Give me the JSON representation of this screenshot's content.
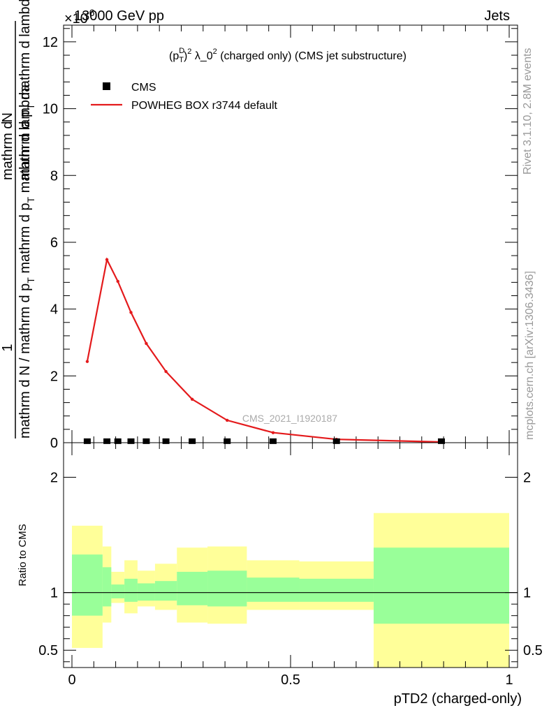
{
  "header": {
    "left": "13000 GeV pp",
    "right": "Jets",
    "exponent": "×10",
    "exponent_power": "-6"
  },
  "side_labels": {
    "rivet": "Rivet 3.1.10,  2.8M events",
    "mcplots": "mcplots.cern.ch [arXiv:1306.3436]"
  },
  "watermark": "CMS_2021_I1920187",
  "chart_data": [
    {
      "type": "line",
      "title": "(p_T^D)^2 λ_0^2 (charged only) (CMS jet substructure)",
      "title_parts": {
        "open": "(p",
        "sup1": "D",
        "sub1": "T",
        "close": ")",
        "sup2": "2",
        "mid": " λ_0",
        "sup3": "2",
        "tail": " (charged only) (CMS jet substructure)"
      },
      "ylabel_parts": {
        "left_num": "1",
        "left_den": "mathrm d N / mathrm d p",
        "left_den_sub": "T",
        "left_den_tail": " mathrm d p",
        "left_den_sub2": "T",
        "left_den_tail2": " mathrm d lambda",
        "right_num": "mathrm d",
        "right_num_tail": "N",
        "right_den": "mathrm d p",
        "right_den_sub": "T",
        "right_den_tail": " mathrm d lambda"
      },
      "xlim": [
        0,
        1
      ],
      "ylim": [
        0,
        12.5
      ],
      "yticks": [
        "0",
        "2",
        "4",
        "6",
        "8",
        "10",
        "12"
      ],
      "legend_position": "top-left",
      "series": [
        {
          "name": "CMS",
          "style": "markers",
          "color": "#000000",
          "x": [
            0.035,
            0.08,
            0.105,
            0.135,
            0.17,
            0.215,
            0.275,
            0.355,
            0.46,
            0.605,
            0.845
          ],
          "y": [
            0.003,
            0.003,
            0.003,
            0.003,
            0.003,
            0.003,
            0.003,
            0.003,
            0.003,
            0.003,
            0.003
          ]
        },
        {
          "name": "POWHEG BOX r3744 default",
          "style": "line",
          "color": "#e41a1c",
          "x": [
            0.035,
            0.08,
            0.105,
            0.135,
            0.17,
            0.215,
            0.275,
            0.355,
            0.46,
            0.605,
            0.845
          ],
          "y": [
            2.43,
            5.48,
            4.83,
            3.9,
            2.97,
            2.13,
            1.3,
            0.67,
            0.3,
            0.1,
            0.02
          ]
        }
      ]
    },
    {
      "type": "area",
      "ylabel": "Ratio to CMS",
      "xlabel": "pTD2 (charged-only)",
      "xlim": [
        0,
        1
      ],
      "ylim": [
        0.35,
        2.3
      ],
      "yticks": [
        "0.5",
        "1",
        "2"
      ],
      "xticks": [
        "0",
        "0.5",
        "1"
      ],
      "reference_line": 1,
      "bands": [
        {
          "name": "outer",
          "color": "#ffff99",
          "bins": [
            {
              "x": [
                0.0,
                0.07
              ],
              "y": [
                0.52,
                1.58
              ]
            },
            {
              "x": [
                0.07,
                0.09
              ],
              "y": [
                0.74,
                1.4
              ]
            },
            {
              "x": [
                0.09,
                0.12
              ],
              "y": [
                0.91,
                1.18
              ]
            },
            {
              "x": [
                0.12,
                0.15
              ],
              "y": [
                0.82,
                1.28
              ]
            },
            {
              "x": [
                0.15,
                0.19
              ],
              "y": [
                0.88,
                1.19
              ]
            },
            {
              "x": [
                0.19,
                0.24
              ],
              "y": [
                0.85,
                1.25
              ]
            },
            {
              "x": [
                0.24,
                0.31
              ],
              "y": [
                0.74,
                1.39
              ]
            },
            {
              "x": [
                0.31,
                0.4
              ],
              "y": [
                0.73,
                1.4
              ]
            },
            {
              "x": [
                0.4,
                0.52
              ],
              "y": [
                0.85,
                1.28
              ]
            },
            {
              "x": [
                0.52,
                0.69
              ],
              "y": [
                0.85,
                1.27
              ]
            },
            {
              "x": [
                0.69,
                1.0
              ],
              "y": [
                0.35,
                1.69
              ]
            }
          ]
        },
        {
          "name": "inner",
          "color": "#99ff99",
          "bins": [
            {
              "x": [
                0.0,
                0.07
              ],
              "y": [
                0.8,
                1.33
              ]
            },
            {
              "x": [
                0.07,
                0.09
              ],
              "y": [
                0.88,
                1.22
              ]
            },
            {
              "x": [
                0.09,
                0.12
              ],
              "y": [
                0.95,
                1.07
              ]
            },
            {
              "x": [
                0.12,
                0.15
              ],
              "y": [
                0.92,
                1.12
              ]
            },
            {
              "x": [
                0.15,
                0.19
              ],
              "y": [
                0.93,
                1.08
              ]
            },
            {
              "x": [
                0.19,
                0.24
              ],
              "y": [
                0.93,
                1.1
              ]
            },
            {
              "x": [
                0.24,
                0.31
              ],
              "y": [
                0.89,
                1.18
              ]
            },
            {
              "x": [
                0.31,
                0.4
              ],
              "y": [
                0.88,
                1.19
              ]
            },
            {
              "x": [
                0.4,
                0.52
              ],
              "y": [
                0.92,
                1.13
              ]
            },
            {
              "x": [
                0.52,
                0.69
              ],
              "y": [
                0.92,
                1.12
              ]
            },
            {
              "x": [
                0.69,
                1.0
              ],
              "y": [
                0.73,
                1.39
              ]
            }
          ]
        }
      ]
    }
  ]
}
